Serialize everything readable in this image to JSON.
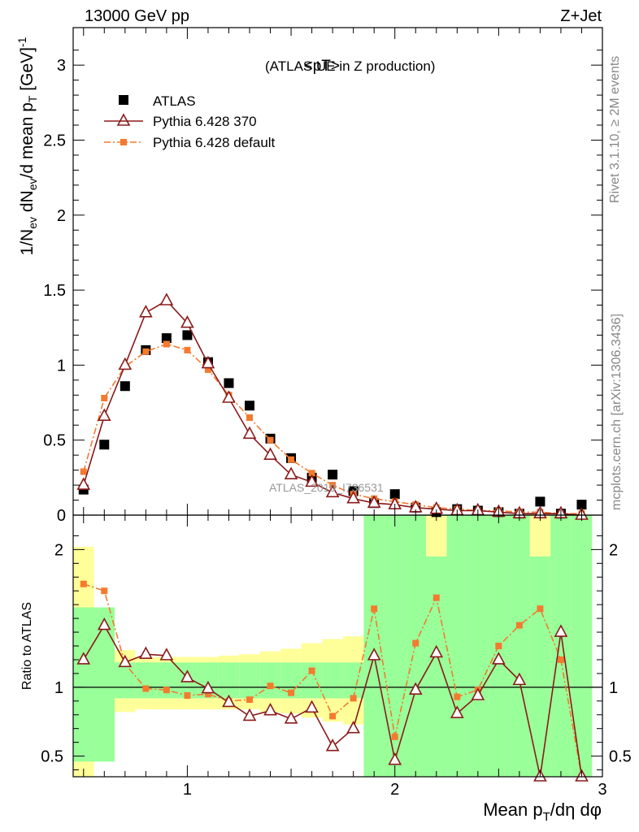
{
  "header": {
    "left": "13000 GeV pp",
    "right": "Z+Jet"
  },
  "plot_title": "<pT>",
  "plot_subtitle": "(ATLAS UE in Z production)",
  "watermark": "ATLAS_2019_I736531",
  "side_labels": {
    "top": "Rivet 3.1.10, ≥ 2M events",
    "bottom": "mcplots.cern.ch [arXiv:1306.3436]"
  },
  "legend": [
    {
      "label": "ATLAS",
      "style": "data"
    },
    {
      "label": "Pythia 6.428 370",
      "style": "p370"
    },
    {
      "label": "Pythia 6.428 default",
      "style": "pdef"
    }
  ],
  "colors": {
    "data": "#000000",
    "p370": "#8b1a1a",
    "pdef": "#f47a30",
    "band_inner": "#99ff99",
    "band_outer": "#ffff99"
  },
  "chart_data": [
    {
      "type": "scatter",
      "xlabel": "Mean p_T/dη dφ",
      "ylabel": "1/N_ev dN_ev/d mean p_T [GeV]^-1",
      "xlim": [
        0.45,
        3.0
      ],
      "ylim": [
        0,
        3.25
      ],
      "xticks": [
        1,
        2,
        3
      ],
      "yticks": [
        0,
        0.5,
        1,
        1.5,
        2,
        2.5,
        3
      ],
      "x": [
        0.5,
        0.6,
        0.7,
        0.8,
        0.9,
        1.0,
        1.1,
        1.2,
        1.3,
        1.4,
        1.5,
        1.6,
        1.7,
        1.8,
        1.9,
        2.0,
        2.1,
        2.2,
        2.3,
        2.4,
        2.5,
        2.6,
        2.7,
        2.8,
        2.9
      ],
      "series": [
        {
          "name": "ATLAS",
          "values": [
            0.17,
            0.47,
            0.86,
            1.1,
            1.18,
            1.2,
            1.02,
            0.88,
            0.73,
            0.51,
            0.38,
            0.25,
            0.27,
            0.16,
            0.08,
            0.14,
            0.05,
            0.02,
            0.04,
            0.03,
            0.02,
            0.01,
            0.09,
            0.01,
            0.07
          ]
        },
        {
          "name": "Pythia 6.428 370",
          "values": [
            0.2,
            0.66,
            1.0,
            1.35,
            1.43,
            1.28,
            1.01,
            0.78,
            0.54,
            0.4,
            0.27,
            0.22,
            0.15,
            0.11,
            0.08,
            0.07,
            0.05,
            0.04,
            0.03,
            0.03,
            0.02,
            0.01,
            0.01,
            0.01,
            0.0
          ]
        },
        {
          "name": "Pythia 6.428 default",
          "values": [
            0.29,
            0.78,
            0.99,
            1.09,
            1.14,
            1.1,
            0.97,
            0.8,
            0.65,
            0.5,
            0.37,
            0.28,
            0.2,
            0.14,
            0.11,
            0.09,
            0.07,
            0.05,
            0.04,
            0.03,
            0.03,
            0.02,
            0.02,
            0.01,
            0.01
          ]
        }
      ]
    },
    {
      "type": "line",
      "xlabel": "Mean p_T/dη dφ",
      "ylabel": "Ratio to ATLAS",
      "xlim": [
        0.45,
        3.0
      ],
      "ylim": [
        0.35,
        2.25
      ],
      "xticks": [
        1,
        2,
        3
      ],
      "yticks": [
        0.5,
        1,
        2
      ],
      "x": [
        0.5,
        0.6,
        0.7,
        0.8,
        0.9,
        1.0,
        1.1,
        1.2,
        1.3,
        1.4,
        1.5,
        1.6,
        1.7,
        1.8,
        1.9,
        2.0,
        2.1,
        2.2,
        2.3,
        2.4,
        2.5,
        2.6,
        2.7,
        2.8,
        2.9
      ],
      "series": [
        {
          "name": "Pythia 6.428 370",
          "values": [
            1.2,
            1.45,
            1.18,
            1.24,
            1.23,
            1.07,
            0.99,
            0.89,
            0.79,
            0.83,
            0.77,
            0.85,
            0.57,
            0.7,
            1.23,
            0.47,
            0.98,
            1.25,
            0.81,
            0.94,
            1.2,
            1.05,
            0.2,
            1.4,
            0.2
          ]
        },
        {
          "name": "Pythia 6.428 default",
          "values": [
            1.75,
            1.7,
            1.17,
            0.99,
            0.98,
            0.94,
            0.95,
            0.9,
            0.91,
            1.01,
            0.96,
            1.12,
            0.79,
            0.92,
            1.57,
            0.64,
            1.32,
            1.65,
            0.93,
            0.98,
            1.3,
            1.45,
            1.57,
            1.2,
            0.2
          ]
        }
      ],
      "band_inner": [
        [
          0.46,
          1.58
        ],
        [
          0.46,
          1.58
        ],
        [
          0.92,
          1.18
        ],
        [
          0.92,
          1.18
        ],
        [
          0.92,
          1.18
        ],
        [
          0.92,
          1.18
        ],
        [
          0.92,
          1.18
        ],
        [
          0.92,
          1.18
        ],
        [
          0.92,
          1.18
        ],
        [
          0.92,
          1.18
        ],
        [
          0.92,
          1.18
        ],
        [
          0.92,
          1.18
        ],
        [
          0.92,
          1.18
        ],
        [
          0.92,
          1.18
        ],
        [
          0.35,
          2.25
        ],
        [
          0.35,
          2.25
        ],
        [
          0.35,
          2.25
        ],
        [
          0.35,
          1.95
        ],
        [
          0.35,
          2.25
        ],
        [
          0.35,
          2.25
        ],
        [
          0.35,
          2.25
        ],
        [
          0.35,
          2.25
        ],
        [
          0.35,
          1.95
        ],
        [
          0.35,
          2.25
        ],
        [
          0.35,
          2.25
        ]
      ],
      "band_outer": [
        [
          0.35,
          2.02
        ],
        [
          0.65,
          1.58
        ],
        [
          0.82,
          1.27
        ],
        [
          0.84,
          1.22
        ],
        [
          0.84,
          1.22
        ],
        [
          0.84,
          1.22
        ],
        [
          0.84,
          1.22
        ],
        [
          0.84,
          1.23
        ],
        [
          0.84,
          1.24
        ],
        [
          0.82,
          1.26
        ],
        [
          0.81,
          1.28
        ],
        [
          0.78,
          1.32
        ],
        [
          0.75,
          1.35
        ],
        [
          0.73,
          1.37
        ],
        [
          0.35,
          2.25
        ],
        [
          0.35,
          2.25
        ],
        [
          0.35,
          2.25
        ],
        [
          0.35,
          2.25
        ],
        [
          0.35,
          2.25
        ],
        [
          0.35,
          2.25
        ],
        [
          0.35,
          2.25
        ],
        [
          0.35,
          2.25
        ],
        [
          0.35,
          2.25
        ],
        [
          0.35,
          2.25
        ],
        [
          0.35,
          2.25
        ]
      ]
    }
  ]
}
